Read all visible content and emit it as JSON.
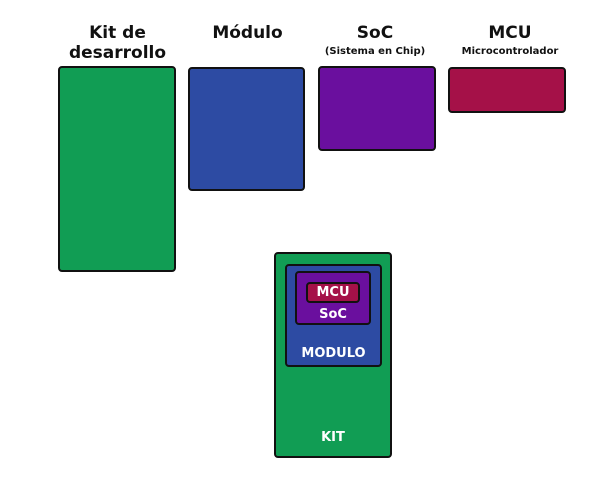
{
  "colors": {
    "kit": "#119d54",
    "module": "#2d4ba3",
    "soc": "#6a0f9e",
    "mcu": "#a51148",
    "outline": "#111111"
  },
  "labels": {
    "kit": "Kit de desarrollo",
    "module": "Módulo",
    "soc": "SoC",
    "soc_sub": "(Sistema en Chip)",
    "mcu": "MCU",
    "mcu_sub": "Microcontrolador"
  },
  "nested": {
    "mcu": "MCU",
    "soc": "SoC",
    "module": "MODULO",
    "kit": "KIT"
  }
}
